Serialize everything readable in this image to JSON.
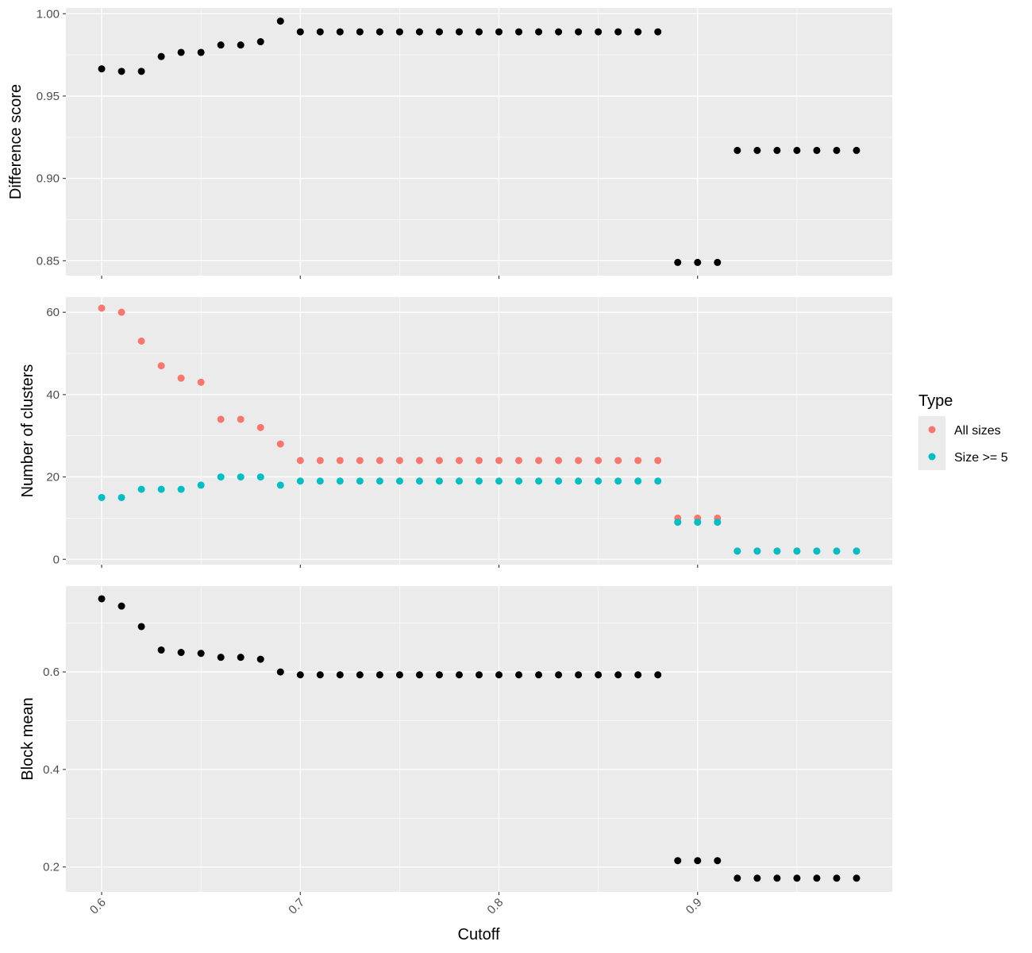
{
  "chart_data": {
    "type": "scatter",
    "x_label": "Cutoff",
    "x_ticks": [
      "0.6",
      "0.7",
      "0.8",
      "0.9"
    ],
    "x": [
      0.6,
      0.61,
      0.62,
      0.63,
      0.64,
      0.65,
      0.66,
      0.67,
      0.68,
      0.69,
      0.7,
      0.71,
      0.72,
      0.73,
      0.74,
      0.75,
      0.76,
      0.77,
      0.78,
      0.79,
      0.8,
      0.81,
      0.82,
      0.83,
      0.84,
      0.85,
      0.86,
      0.87,
      0.88,
      0.89,
      0.9,
      0.91,
      0.92,
      0.93,
      0.94,
      0.95,
      0.96,
      0.97,
      0.98
    ],
    "xlim": [
      0.582,
      0.998
    ],
    "facets": [
      {
        "ylabel": "Difference score",
        "ylim": [
          0.841,
          1.0035
        ],
        "y_ticks": [
          "0.85",
          "0.90",
          "0.95",
          "1.00"
        ],
        "series": [
          {
            "color": "#000000",
            "values": [
              0.9665,
              0.965,
              0.965,
              0.974,
              0.9765,
              0.9765,
              0.981,
              0.981,
              0.983,
              0.9955,
              0.989,
              0.989,
              0.989,
              0.989,
              0.989,
              0.989,
              0.989,
              0.989,
              0.989,
              0.989,
              0.989,
              0.989,
              0.989,
              0.989,
              0.989,
              0.989,
              0.989,
              0.989,
              0.989,
              0.849,
              0.849,
              0.849,
              0.917,
              0.917,
              0.917,
              0.917,
              0.917,
              0.917,
              0.917
            ]
          }
        ]
      },
      {
        "ylabel": "Number of clusters",
        "ylim": [
          -1.3,
          63.7
        ],
        "y_ticks": [
          "0",
          "20",
          "40",
          "60"
        ],
        "series": [
          {
            "name": "All sizes",
            "color": "#F8766D",
            "values": [
              61,
              60,
              53,
              47,
              44,
              43,
              34,
              34,
              32,
              28,
              24,
              24,
              24,
              24,
              24,
              24,
              24,
              24,
              24,
              24,
              24,
              24,
              24,
              24,
              24,
              24,
              24,
              24,
              24,
              10,
              10,
              10,
              2,
              2,
              2,
              2,
              2,
              2,
              2
            ]
          },
          {
            "name": "Size >= 5",
            "color": "#00BFC4",
            "values": [
              15,
              15,
              17,
              17,
              17,
              18,
              20,
              20,
              20,
              18,
              19,
              19,
              19,
              19,
              19,
              19,
              19,
              19,
              19,
              19,
              19,
              19,
              19,
              19,
              19,
              19,
              19,
              19,
              19,
              9,
              9,
              9,
              2,
              2,
              2,
              2,
              2,
              2,
              2
            ]
          }
        ]
      },
      {
        "ylabel": "Block mean",
        "ylim": [
          0.149,
          0.776
        ],
        "y_ticks": [
          "0.2",
          "0.4",
          "0.6"
        ],
        "series": [
          {
            "color": "#000000",
            "values": [
              0.75,
              0.735,
              0.693,
              0.645,
              0.64,
              0.638,
              0.63,
              0.63,
              0.626,
              0.6,
              0.594,
              0.594,
              0.594,
              0.594,
              0.594,
              0.594,
              0.594,
              0.594,
              0.594,
              0.594,
              0.594,
              0.594,
              0.594,
              0.594,
              0.594,
              0.594,
              0.594,
              0.594,
              0.594,
              0.213,
              0.213,
              0.213,
              0.177,
              0.177,
              0.177,
              0.177,
              0.177,
              0.177,
              0.177
            ]
          }
        ]
      }
    ],
    "legend": {
      "title": "Type",
      "position": "right",
      "items": [
        {
          "label": "All sizes",
          "color": "#F8766D"
        },
        {
          "label": "Size >= 5",
          "color": "#00BFC4"
        }
      ]
    }
  }
}
